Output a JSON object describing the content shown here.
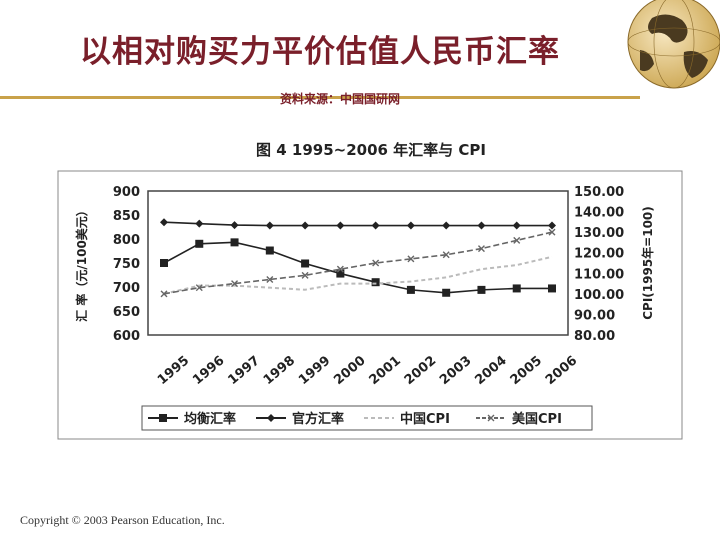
{
  "slide": {
    "title": "以相对购买力平价估值人民币汇率",
    "source": "资料来源：中国国研网",
    "copyright": "Copyright © 2003 Pearson Education, Inc."
  },
  "colors": {
    "title": "#7a1f2a",
    "rule": "#c9a24a"
  },
  "chart_data": {
    "type": "line",
    "title": "图 4   1995~2006 年汇率与 CPI",
    "categories": [
      "1995",
      "1996",
      "1997",
      "1998",
      "1999",
      "2000",
      "2001",
      "2002",
      "2003",
      "2004",
      "2005",
      "2006"
    ],
    "y_left": {
      "label": "汇 率（元/100美元）",
      "min": 600,
      "max": 900,
      "ticks": [
        900,
        850,
        800,
        750,
        700,
        650,
        600
      ]
    },
    "y_right": {
      "label": "CPI(1995年=100)",
      "min": 80,
      "max": 150,
      "ticks": [
        "150.00",
        "140.00",
        "130.00",
        "120.00",
        "110.00",
        "100.00",
        "90.00",
        "80.00"
      ]
    },
    "series": [
      {
        "name": "均衡汇率",
        "axis": "left",
        "marker": "square",
        "color": "#222222",
        "values": [
          750,
          790,
          793,
          776,
          749,
          728,
          710,
          694,
          688,
          694,
          697,
          697
        ]
      },
      {
        "name": "官方汇率",
        "axis": "left",
        "marker": "diamond",
        "color": "#222222",
        "values": [
          835,
          832,
          829,
          828,
          828,
          828,
          828,
          828,
          828,
          828,
          828,
          828
        ]
      },
      {
        "name": "中国CPI",
        "axis": "right",
        "marker": "none",
        "color": "#bbbbbb",
        "values": [
          100,
          104,
          104,
          103,
          102,
          105,
          105,
          106,
          108,
          112,
          114,
          118
        ]
      },
      {
        "name": "美国CPI",
        "axis": "right",
        "marker": "x",
        "color": "#666666",
        "values": [
          100,
          103,
          105,
          107,
          109,
          112,
          115,
          117,
          119,
          122,
          126,
          130
        ]
      }
    ],
    "legend": [
      "均衡汇率",
      "官方汇率",
      "中国CPI",
      "美国CPI"
    ]
  }
}
